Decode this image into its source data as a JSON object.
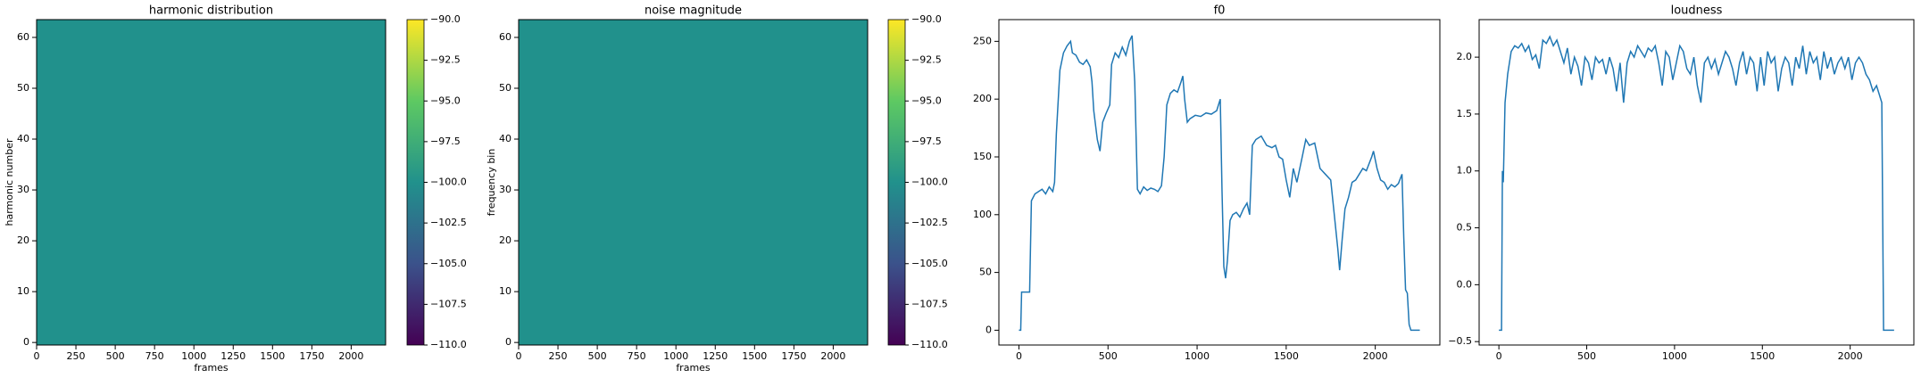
{
  "chart_data": [
    {
      "type": "heatmap",
      "title": "harmonic distribution",
      "xlabel": "frames",
      "ylabel": "harmonic number",
      "value": -100,
      "colormap": "viridis",
      "clim": [
        -110,
        -90
      ],
      "cticks": [
        {
          "value": -110,
          "label": "−110.0"
        },
        {
          "value": -107.5,
          "label": "−107.5"
        },
        {
          "value": -105,
          "label": "−105.0"
        },
        {
          "value": -102.5,
          "label": "−102.5"
        },
        {
          "value": -100,
          "label": "−100.0"
        },
        {
          "value": -97.5,
          "label": "−97.5"
        },
        {
          "value": -95,
          "label": "−95.0"
        },
        {
          "value": -92.5,
          "label": "−92.5"
        },
        {
          "value": -90,
          "label": "−90.0"
        }
      ],
      "xlim": [
        0,
        2219
      ],
      "xticks": [
        0,
        250,
        500,
        750,
        1000,
        1250,
        1500,
        1750,
        2000
      ],
      "ylim": [
        -0.5,
        63.5
      ],
      "yticks": [
        0,
        10,
        20,
        30,
        40,
        50,
        60
      ]
    },
    {
      "type": "heatmap",
      "title": "noise magnitude",
      "xlabel": "frames",
      "ylabel": "frequency bin",
      "value": -100,
      "colormap": "viridis",
      "clim": [
        -110,
        -90
      ],
      "cticks": [
        {
          "value": -110,
          "label": "−110.0"
        },
        {
          "value": -107.5,
          "label": "−107.5"
        },
        {
          "value": -105,
          "label": "−105.0"
        },
        {
          "value": -102.5,
          "label": "−102.5"
        },
        {
          "value": -100,
          "label": "−100.0"
        },
        {
          "value": -97.5,
          "label": "−97.5"
        },
        {
          "value": -95,
          "label": "−95.0"
        },
        {
          "value": -92.5,
          "label": "−92.5"
        },
        {
          "value": -90,
          "label": "−90.0"
        }
      ],
      "xlim": [
        0,
        2219
      ],
      "xticks": [
        0,
        250,
        500,
        750,
        1000,
        1250,
        1500,
        1750,
        2000
      ],
      "ylim": [
        -0.5,
        63.5
      ],
      "yticks": [
        0,
        10,
        20,
        30,
        40,
        50,
        60
      ]
    },
    {
      "type": "line",
      "title": "f0",
      "color": "#1f77b4",
      "x": [
        0,
        10,
        15,
        40,
        60,
        70,
        90,
        110,
        130,
        150,
        170,
        190,
        200,
        210,
        230,
        250,
        270,
        290,
        300,
        320,
        340,
        360,
        380,
        400,
        410,
        420,
        440,
        455,
        470,
        490,
        510,
        520,
        540,
        560,
        580,
        600,
        620,
        635,
        650,
        665,
        680,
        700,
        720,
        740,
        760,
        780,
        800,
        815,
        830,
        850,
        870,
        890,
        910,
        920,
        930,
        945,
        960,
        990,
        1020,
        1050,
        1080,
        1110,
        1130,
        1140,
        1150,
        1160,
        1170,
        1185,
        1200,
        1220,
        1240,
        1260,
        1280,
        1295,
        1310,
        1330,
        1360,
        1390,
        1420,
        1440,
        1460,
        1480,
        1500,
        1520,
        1540,
        1560,
        1590,
        1610,
        1630,
        1660,
        1690,
        1720,
        1750,
        1770,
        1790,
        1800,
        1815,
        1830,
        1850,
        1870,
        1890,
        1910,
        1930,
        1950,
        1980,
        1990,
        2010,
        2030,
        2050,
        2070,
        2090,
        2110,
        2130,
        2150,
        2160,
        2170,
        2180,
        2190,
        2200,
        2220,
        2250
      ],
      "values": [
        0,
        0,
        33,
        33,
        33,
        112,
        118,
        120,
        122,
        118,
        124,
        120,
        128,
        170,
        225,
        240,
        246,
        250,
        240,
        238,
        232,
        230,
        234,
        228,
        215,
        190,
        165,
        155,
        180,
        188,
        195,
        230,
        240,
        236,
        245,
        238,
        250,
        255,
        215,
        122,
        118,
        124,
        121,
        123,
        122,
        120,
        125,
        150,
        195,
        205,
        208,
        206,
        215,
        220,
        200,
        180,
        183,
        186,
        185,
        188,
        187,
        190,
        200,
        120,
        55,
        45,
        60,
        95,
        100,
        102,
        98,
        105,
        110,
        100,
        160,
        165,
        168,
        160,
        158,
        160,
        150,
        148,
        130,
        115,
        140,
        128,
        150,
        165,
        160,
        162,
        140,
        135,
        130,
        100,
        70,
        52,
        80,
        105,
        115,
        128,
        130,
        135,
        140,
        138,
        150,
        155,
        140,
        130,
        128,
        122,
        126,
        124,
        127,
        135,
        80,
        35,
        32,
        5,
        0,
        0,
        0
      ],
      "xlim": [
        -112.5,
        2362.5
      ],
      "xticks": [
        0,
        500,
        1000,
        1500,
        2000
      ],
      "ylim": [
        -12.8,
        268.8
      ],
      "yticks": [
        0,
        50,
        100,
        150,
        200,
        250
      ]
    },
    {
      "type": "line",
      "title": "loudness",
      "color": "#1f77b4",
      "x": [
        0,
        15,
        20,
        25,
        35,
        50,
        70,
        90,
        110,
        130,
        150,
        170,
        190,
        210,
        230,
        250,
        270,
        290,
        310,
        330,
        350,
        370,
        390,
        410,
        430,
        450,
        470,
        490,
        510,
        530,
        550,
        570,
        590,
        610,
        630,
        650,
        670,
        690,
        710,
        730,
        750,
        770,
        790,
        810,
        830,
        850,
        870,
        890,
        910,
        930,
        950,
        970,
        990,
        1010,
        1030,
        1050,
        1070,
        1090,
        1110,
        1130,
        1150,
        1170,
        1190,
        1210,
        1230,
        1250,
        1270,
        1290,
        1310,
        1330,
        1350,
        1370,
        1390,
        1410,
        1430,
        1450,
        1470,
        1490,
        1510,
        1530,
        1550,
        1570,
        1590,
        1610,
        1630,
        1650,
        1670,
        1690,
        1710,
        1730,
        1750,
        1770,
        1790,
        1810,
        1830,
        1850,
        1870,
        1890,
        1910,
        1930,
        1950,
        1970,
        1990,
        2010,
        2030,
        2050,
        2070,
        2090,
        2110,
        2130,
        2150,
        2170,
        2180,
        2190,
        2250
      ],
      "values": [
        -0.4,
        -0.4,
        1.0,
        0.9,
        1.6,
        1.85,
        2.05,
        2.1,
        2.08,
        2.12,
        2.05,
        2.1,
        1.98,
        2.02,
        1.9,
        2.15,
        2.12,
        2.18,
        2.1,
        2.15,
        2.05,
        1.95,
        2.08,
        1.85,
        2.0,
        1.92,
        1.75,
        2.0,
        1.95,
        1.8,
        2.0,
        1.95,
        1.98,
        1.85,
        2.0,
        1.9,
        1.7,
        1.95,
        1.6,
        1.95,
        2.05,
        2.0,
        2.1,
        2.05,
        2.0,
        2.08,
        2.05,
        2.1,
        1.95,
        1.75,
        2.05,
        2.0,
        1.8,
        1.95,
        2.1,
        2.05,
        1.9,
        1.85,
        2.0,
        1.75,
        1.6,
        1.95,
        2.0,
        1.9,
        1.98,
        1.85,
        1.95,
        2.05,
        2.0,
        1.9,
        1.75,
        1.95,
        2.05,
        1.85,
        2.0,
        1.95,
        1.7,
        2.0,
        1.75,
        2.05,
        1.95,
        2.0,
        1.7,
        1.9,
        2.0,
        1.95,
        1.75,
        2.0,
        1.9,
        2.1,
        1.85,
        2.05,
        1.95,
        2.0,
        1.8,
        2.05,
        1.9,
        2.0,
        1.85,
        1.95,
        2.0,
        1.9,
        2.0,
        1.8,
        1.95,
        2.0,
        1.95,
        1.85,
        1.8,
        1.7,
        1.75,
        1.65,
        1.6,
        -0.4,
        -0.4
      ],
      "xlim": [
        -112.5,
        2362.5
      ],
      "xticks": [
        0,
        500,
        1000,
        1500,
        2000
      ],
      "ylim": [
        -0.53,
        2.33
      ],
      "yticks": [
        {
          "value": -0.5,
          "label": "−0.5"
        },
        {
          "value": 0,
          "label": "0.0"
        },
        {
          "value": 0.5,
          "label": "0.5"
        },
        {
          "value": 1,
          "label": "1.0"
        },
        {
          "value": 1.5,
          "label": "1.5"
        },
        {
          "value": 2,
          "label": "2.0"
        }
      ]
    }
  ]
}
